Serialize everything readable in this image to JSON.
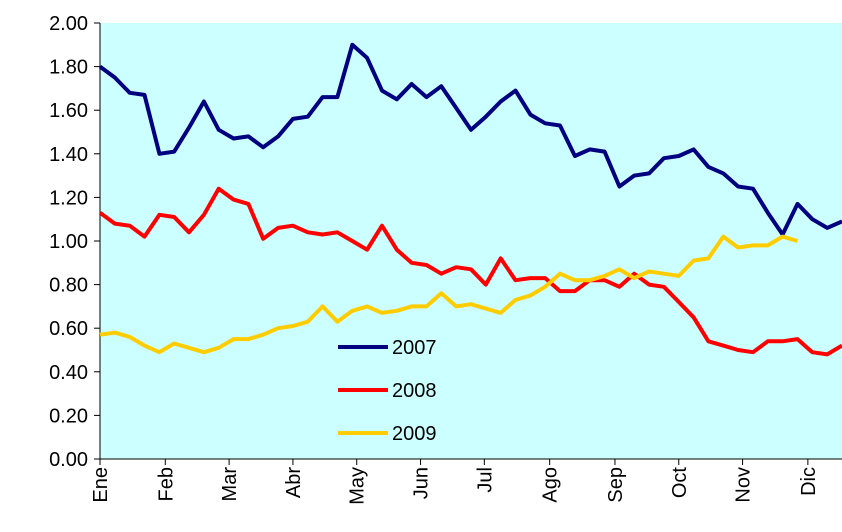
{
  "chart_data": {
    "type": "line",
    "x": [
      0,
      1,
      2,
      3,
      4,
      5,
      6,
      7,
      8,
      9,
      10,
      11,
      12,
      13,
      14,
      15,
      16,
      17,
      18,
      19,
      20,
      21,
      22,
      23,
      24,
      25,
      26,
      27,
      28,
      29,
      30,
      31,
      32,
      33,
      34,
      35,
      36,
      37,
      38,
      39,
      40,
      41,
      42,
      43,
      44,
      45,
      46,
      47,
      48,
      49,
      50
    ],
    "series": [
      {
        "name": "2007",
        "color": "#000080",
        "values": [
          1.8,
          1.75,
          1.68,
          1.67,
          1.4,
          1.41,
          1.52,
          1.64,
          1.51,
          1.47,
          1.48,
          1.43,
          1.48,
          1.56,
          1.57,
          1.66,
          1.66,
          1.9,
          1.84,
          1.69,
          1.65,
          1.72,
          1.66,
          1.71,
          1.61,
          1.51,
          1.57,
          1.64,
          1.69,
          1.58,
          1.54,
          1.53,
          1.39,
          1.42,
          1.41,
          1.25,
          1.3,
          1.31,
          1.38,
          1.39,
          1.42,
          1.34,
          1.31,
          1.25,
          1.24,
          1.13,
          1.03,
          1.17,
          1.1,
          1.06,
          1.09
        ]
      },
      {
        "name": "2008",
        "color": "#ff0000",
        "values": [
          1.13,
          1.08,
          1.07,
          1.02,
          1.12,
          1.11,
          1.04,
          1.12,
          1.24,
          1.19,
          1.17,
          1.01,
          1.06,
          1.07,
          1.04,
          1.03,
          1.04,
          1.0,
          0.96,
          1.07,
          0.96,
          0.9,
          0.89,
          0.85,
          0.88,
          0.87,
          0.8,
          0.92,
          0.82,
          0.83,
          0.83,
          0.77,
          0.77,
          0.82,
          0.82,
          0.79,
          0.85,
          0.8,
          0.79,
          0.72,
          0.65,
          0.54,
          0.52,
          0.5,
          0.49,
          0.54,
          0.54,
          0.55,
          0.49,
          0.48,
          0.52
        ]
      },
      {
        "name": "2009",
        "color": "#ffcc00",
        "values": [
          0.57,
          0.58,
          0.56,
          0.52,
          0.49,
          0.53,
          0.51,
          0.49,
          0.51,
          0.55,
          0.55,
          0.57,
          0.6,
          0.61,
          0.63,
          0.7,
          0.63,
          0.68,
          0.7,
          0.67,
          0.68,
          0.7,
          0.7,
          0.76,
          0.7,
          0.71,
          0.69,
          0.67,
          0.73,
          0.75,
          0.79,
          0.85,
          0.82,
          0.82,
          0.84,
          0.87,
          0.83,
          0.86,
          0.85,
          0.84,
          0.91,
          0.92,
          1.02,
          0.97,
          0.98,
          0.98,
          1.02,
          1.0,
          null,
          null,
          null
        ]
      }
    ],
    "xlim": [
      0,
      50
    ],
    "xticks": [
      {
        "value": 0,
        "label": "Ene"
      },
      {
        "value": 4.4,
        "label": "Feb"
      },
      {
        "value": 8.7,
        "label": "Mar"
      },
      {
        "value": 13.0,
        "label": "Abr"
      },
      {
        "value": 17.3,
        "label": "May"
      },
      {
        "value": 21.6,
        "label": "Jun"
      },
      {
        "value": 25.9,
        "label": "Jul"
      },
      {
        "value": 30.3,
        "label": "Ago"
      },
      {
        "value": 34.7,
        "label": "Sep"
      },
      {
        "value": 39.0,
        "label": "Oct"
      },
      {
        "value": 43.3,
        "label": "Nov"
      },
      {
        "value": 47.7,
        "label": "Dic"
      }
    ],
    "ylim": [
      0,
      2
    ],
    "yticks": [
      {
        "value": 0,
        "label": "0.00"
      },
      {
        "value": 0.2,
        "label": "0.20"
      },
      {
        "value": 0.4,
        "label": "0.40"
      },
      {
        "value": 0.6,
        "label": "0.60"
      },
      {
        "value": 0.8,
        "label": "0.80"
      },
      {
        "value": 1.0,
        "label": "1.00"
      },
      {
        "value": 1.2,
        "label": "1.20"
      },
      {
        "value": 1.4,
        "label": "1.40"
      },
      {
        "value": 1.6,
        "label": "1.60"
      },
      {
        "value": 1.8,
        "label": "1.80"
      },
      {
        "value": 2.0,
        "label": "2.00"
      }
    ],
    "grid": false,
    "plot_background": "#ccffff"
  }
}
